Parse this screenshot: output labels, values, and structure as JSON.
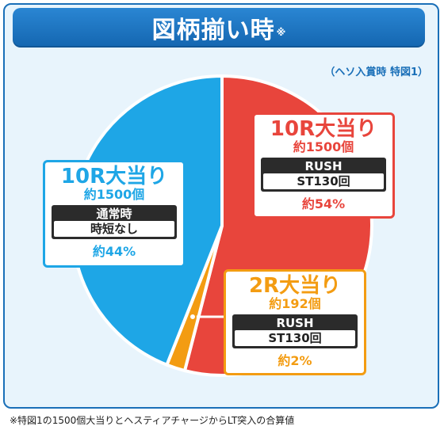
{
  "header": {
    "title": "図柄揃い時",
    "title_mark": "※"
  },
  "subnote": "（ヘソ入賞時 特図1）",
  "footnote": "※特図1の1500個大当りとヘスティアチャージからLT突入の合算値",
  "chart_data": {
    "type": "pie",
    "title": "図柄揃い時",
    "slices": [
      {
        "label": "10R大当り",
        "sub": "約1500個",
        "mode_top": "RUSH",
        "mode_bottom": "ST130回",
        "value": 54,
        "value_label": "約54%",
        "color": "#e8453c"
      },
      {
        "label": "2R大当り",
        "sub": "約192個",
        "mode_top": "RUSH",
        "mode_bottom": "ST130回",
        "value": 2,
        "value_label": "約2%",
        "color": "#f39c12"
      },
      {
        "label": "10R大当り",
        "sub": "約1500個",
        "mode_top": "通常時",
        "mode_bottom": "時短なし",
        "value": 44,
        "value_label": "約44%",
        "color": "#1ea6e6"
      }
    ]
  }
}
